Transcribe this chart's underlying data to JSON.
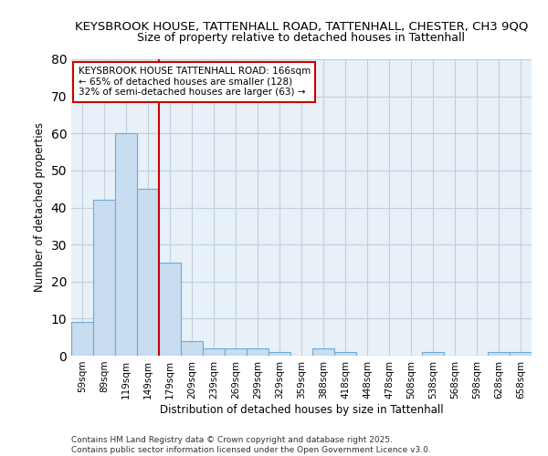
{
  "title_line1": "KEYSBROOK HOUSE, TATTENHALL ROAD, TATTENHALL, CHESTER, CH3 9QQ",
  "title_line2": "Size of property relative to detached houses in Tattenhall",
  "xlabel": "Distribution of detached houses by size in Tattenhall",
  "ylabel": "Number of detached properties",
  "categories": [
    "59sqm",
    "89sqm",
    "119sqm",
    "149sqm",
    "179sqm",
    "209sqm",
    "239sqm",
    "269sqm",
    "299sqm",
    "329sqm",
    "359sqm",
    "388sqm",
    "418sqm",
    "448sqm",
    "478sqm",
    "508sqm",
    "538sqm",
    "568sqm",
    "598sqm",
    "628sqm",
    "658sqm"
  ],
  "values": [
    9,
    42,
    60,
    45,
    25,
    4,
    2,
    2,
    2,
    1,
    0,
    2,
    1,
    0,
    0,
    0,
    1,
    0,
    0,
    1,
    1
  ],
  "bar_color": "#c8ddf0",
  "bar_edge_color": "#6aacd8",
  "ylim": [
    0,
    80
  ],
  "yticks": [
    0,
    10,
    20,
    30,
    40,
    50,
    60,
    70,
    80
  ],
  "annotation_text": "KEYSBROOK HOUSE TATTENHALL ROAD: 166sqm\n← 65% of detached houses are smaller (128)\n32% of semi-detached houses are larger (63) →",
  "annotation_box_color": "#ffffff",
  "annotation_border_color": "#cc0000",
  "vline_x": 3.5,
  "vline_color": "#cc0000",
  "footer": "Contains HM Land Registry data © Crown copyright and database right 2025.\nContains public sector information licensed under the Open Government Licence v3.0.",
  "plot_bg_color": "#e8f0f8",
  "fig_bg_color": "#ffffff",
  "grid_color": "#c0cfe0",
  "title1_fontsize": 9.5,
  "title2_fontsize": 9.0,
  "xlabel_fontsize": 8.5,
  "ylabel_fontsize": 8.5,
  "tick_fontsize": 7.5,
  "annot_fontsize": 7.5,
  "footer_fontsize": 6.5
}
